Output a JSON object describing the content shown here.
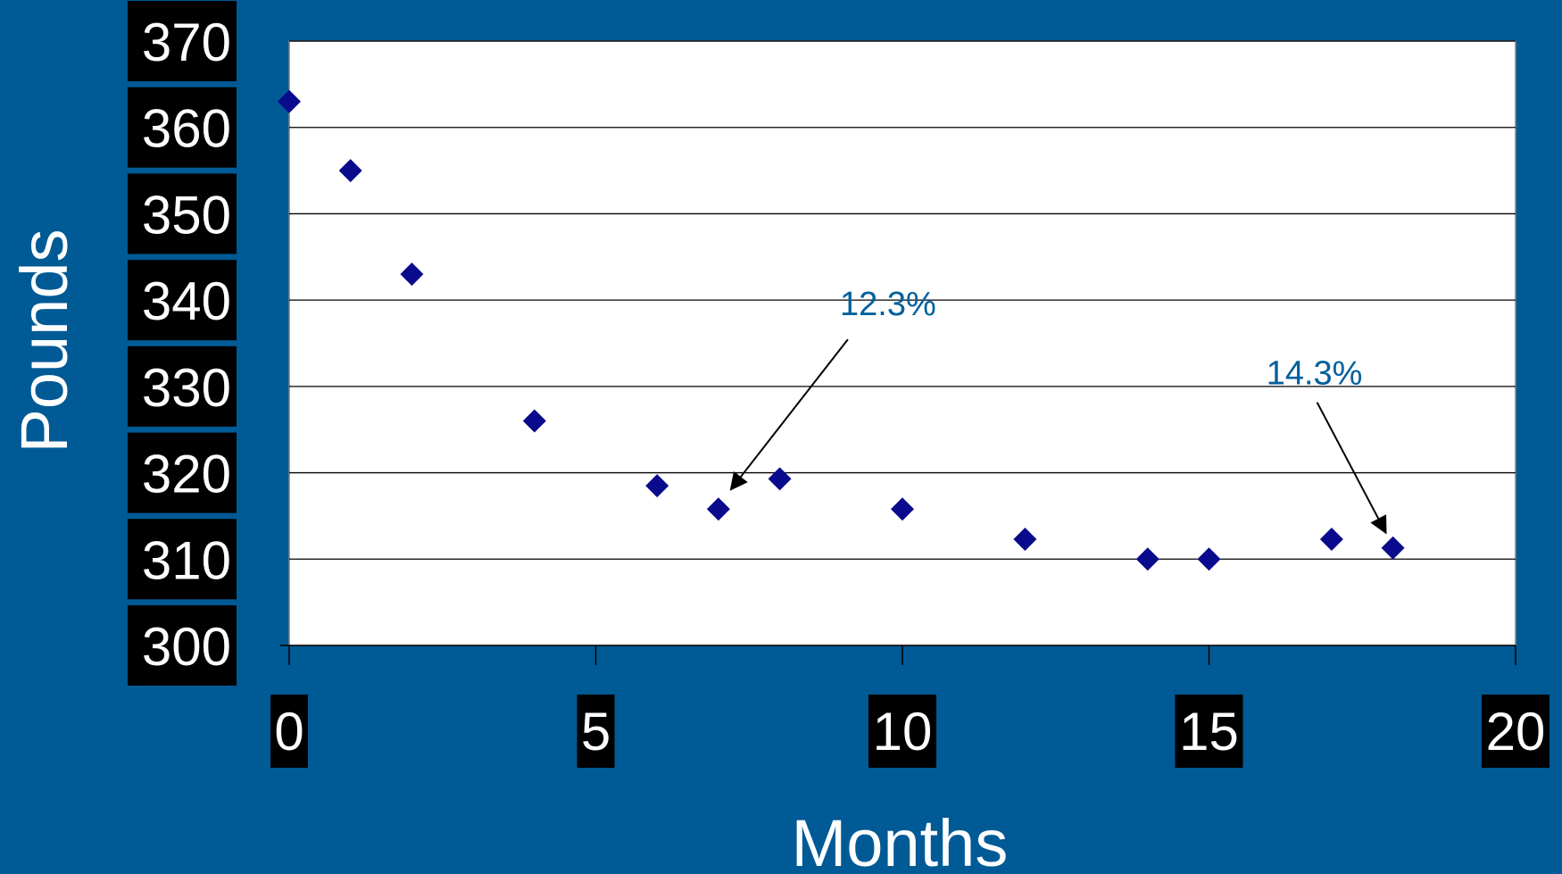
{
  "chart_data": {
    "type": "scatter",
    "title": "",
    "xlabel": "Months",
    "ylabel": "Pounds",
    "xlim": [
      0,
      20
    ],
    "ylim": [
      300,
      370
    ],
    "xticks": [
      0,
      5,
      10,
      15,
      20
    ],
    "yticks": [
      300,
      310,
      320,
      330,
      340,
      350,
      360,
      370
    ],
    "xtick_labels": [
      "0",
      "5",
      "10",
      "15",
      "20"
    ],
    "ytick_labels": [
      "300",
      "310",
      "320",
      "330",
      "340",
      "350",
      "360",
      "370"
    ],
    "grid": "horizontal",
    "marker": "diamond",
    "series": [
      {
        "points": [
          {
            "x": 0,
            "y": 363
          },
          {
            "x": 1,
            "y": 355
          },
          {
            "x": 2,
            "y": 343
          },
          {
            "x": 4,
            "y": 326
          },
          {
            "x": 6,
            "y": 318.5
          },
          {
            "x": 7,
            "y": 315.8
          },
          {
            "x": 8,
            "y": 319.3
          },
          {
            "x": 10,
            "y": 315.8
          },
          {
            "x": 12,
            "y": 312.3
          },
          {
            "x": 14,
            "y": 310
          },
          {
            "x": 15,
            "y": 310
          },
          {
            "x": 17,
            "y": 312.3
          },
          {
            "x": 18,
            "y": 311.3
          }
        ]
      }
    ],
    "annotations": [
      {
        "text": "12.3%",
        "target": {
          "x": 7,
          "y": 315.8
        }
      },
      {
        "text": "14.3%",
        "target": {
          "x": 18,
          "y": 311.3
        }
      }
    ],
    "colors": {
      "background": "#005a96",
      "plot_area": "#ffffff",
      "marker": "#0a0a8c",
      "annotation_text": "#00609c",
      "tick_label_bg": "#000000",
      "tick_label_text": "#ffffff",
      "gridline": "#000000"
    }
  }
}
